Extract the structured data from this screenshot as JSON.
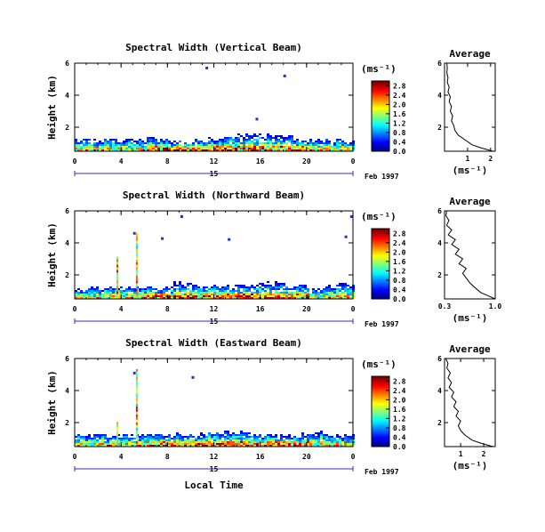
{
  "chart_data": [
    {
      "type": "heatmap",
      "title": "Spectral Width (Vertical Beam)",
      "ylabel": "Height (km)",
      "xlabel": "",
      "x_ticks": [
        "0",
        "4",
        "8",
        "12",
        "16",
        "20",
        "0"
      ],
      "x_range": [
        0,
        24
      ],
      "y_ticks": [
        "2",
        "4",
        "6"
      ],
      "y_range": [
        0.5,
        6
      ],
      "day_label": "15",
      "date_label": "Feb 1997",
      "colorbar": {
        "unit": "(ms⁻¹)",
        "ticks": [
          "0.0",
          "0.4",
          "0.8",
          "1.2",
          "1.6",
          "2.0",
          "2.4",
          "2.8"
        ],
        "range": [
          0,
          3.0
        ]
      },
      "average": {
        "title": "Average",
        "xlabel": "(ms⁻¹)",
        "x_ticks": [
          "1",
          "2"
        ],
        "x_range": [
          0,
          2.2
        ],
        "y_ticks": [
          "2",
          "4",
          "6"
        ],
        "y_range": [
          0.5,
          6
        ],
        "profile": [
          [
            2.1,
            0.5
          ],
          [
            1.6,
            0.7
          ],
          [
            1.2,
            0.9
          ],
          [
            0.9,
            1.2
          ],
          [
            0.6,
            1.5
          ],
          [
            0.45,
            1.8
          ],
          [
            0.4,
            2.1
          ],
          [
            0.3,
            2.4
          ],
          [
            0.35,
            2.7
          ],
          [
            0.25,
            3.0
          ],
          [
            0.3,
            3.3
          ],
          [
            0.2,
            3.6
          ],
          [
            0.25,
            3.9
          ],
          [
            0.15,
            4.2
          ],
          [
            0.2,
            4.5
          ],
          [
            0.12,
            4.8
          ],
          [
            0.15,
            5.1
          ],
          [
            0.1,
            5.4
          ],
          [
            0.12,
            5.7
          ],
          [
            0.1,
            6.0
          ]
        ]
      }
    },
    {
      "type": "heatmap",
      "title": "Spectral Width (Northward Beam)",
      "ylabel": "Height (km)",
      "xlabel": "",
      "x_ticks": [
        "0",
        "4",
        "8",
        "12",
        "16",
        "20",
        "0"
      ],
      "x_range": [
        0,
        24
      ],
      "y_ticks": [
        "2",
        "4",
        "6"
      ],
      "y_range": [
        0.5,
        6
      ],
      "day_label": "15",
      "date_label": "Feb 1997",
      "colorbar": {
        "unit": "(ms⁻¹)",
        "ticks": [
          "0.0",
          "0.4",
          "0.8",
          "1.2",
          "1.6",
          "2.0",
          "2.4",
          "2.8"
        ],
        "range": [
          0,
          3.0
        ]
      },
      "average": {
        "title": "Average",
        "xlabel": "(ms⁻¹)",
        "x_ticks": [
          "0.3",
          "1.0"
        ],
        "x_range": [
          0.3,
          1.0
        ],
        "y_ticks": [
          "2",
          "4",
          "6"
        ],
        "y_range": [
          0.5,
          6
        ],
        "profile": [
          [
            1.0,
            0.5
          ],
          [
            0.9,
            0.7
          ],
          [
            0.8,
            0.9
          ],
          [
            0.72,
            1.2
          ],
          [
            0.65,
            1.5
          ],
          [
            0.6,
            1.8
          ],
          [
            0.55,
            2.1
          ],
          [
            0.6,
            2.4
          ],
          [
            0.5,
            2.7
          ],
          [
            0.55,
            3.0
          ],
          [
            0.45,
            3.3
          ],
          [
            0.5,
            3.6
          ],
          [
            0.4,
            3.9
          ],
          [
            0.45,
            4.2
          ],
          [
            0.35,
            4.5
          ],
          [
            0.4,
            4.8
          ],
          [
            0.33,
            5.1
          ],
          [
            0.36,
            5.4
          ],
          [
            0.32,
            5.7
          ],
          [
            0.33,
            6.0
          ]
        ]
      }
    },
    {
      "type": "heatmap",
      "title": "Spectral Width (Eastward Beam)",
      "ylabel": "Height (km)",
      "xlabel": "Local Time",
      "x_ticks": [
        "0",
        "4",
        "8",
        "12",
        "16",
        "20",
        "0"
      ],
      "x_range": [
        0,
        24
      ],
      "y_ticks": [
        "2",
        "4",
        "6"
      ],
      "y_range": [
        0.5,
        6
      ],
      "day_label": "15",
      "date_label": "Feb 1997",
      "colorbar": {
        "unit": "(ms⁻¹)",
        "ticks": [
          "0.0",
          "0.4",
          "0.8",
          "1.2",
          "1.6",
          "2.0",
          "2.4",
          "2.8"
        ],
        "range": [
          0,
          3.0
        ]
      },
      "average": {
        "title": "Average",
        "xlabel": "(ms⁻¹)",
        "x_ticks": [
          "1",
          "2"
        ],
        "x_range": [
          0.3,
          2.5
        ],
        "y_ticks": [
          "2",
          "4",
          "6"
        ],
        "y_range": [
          0.5,
          6
        ],
        "profile": [
          [
            2.4,
            0.5
          ],
          [
            1.9,
            0.7
          ],
          [
            1.5,
            0.9
          ],
          [
            1.2,
            1.2
          ],
          [
            1.0,
            1.5
          ],
          [
            0.9,
            1.8
          ],
          [
            1.0,
            2.1
          ],
          [
            0.8,
            2.4
          ],
          [
            0.9,
            2.7
          ],
          [
            0.7,
            3.0
          ],
          [
            0.8,
            3.3
          ],
          [
            0.6,
            3.6
          ],
          [
            0.7,
            3.9
          ],
          [
            0.5,
            4.2
          ],
          [
            0.6,
            4.5
          ],
          [
            0.45,
            4.8
          ],
          [
            0.55,
            5.1
          ],
          [
            0.4,
            5.4
          ],
          [
            0.45,
            5.7
          ],
          [
            0.35,
            6.0
          ]
        ]
      }
    }
  ]
}
